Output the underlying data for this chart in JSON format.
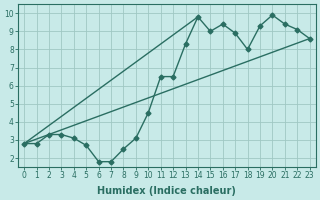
{
  "xlabel": "Humidex (Indice chaleur)",
  "ylabel": "",
  "bg_color": "#c8eae8",
  "grid_color": "#a0c8c4",
  "line_color": "#2a6e62",
  "xlim": [
    -0.5,
    23.5
  ],
  "ylim": [
    1.5,
    10.5
  ],
  "xticks": [
    0,
    1,
    2,
    3,
    4,
    5,
    6,
    7,
    8,
    9,
    10,
    11,
    12,
    13,
    14,
    15,
    16,
    17,
    18,
    19,
    20,
    21,
    22,
    23
  ],
  "yticks": [
    2,
    3,
    4,
    5,
    6,
    7,
    8,
    9,
    10
  ],
  "zigzag_x": [
    0,
    1,
    2,
    3,
    4,
    5,
    6,
    7,
    8,
    9,
    10,
    11,
    12,
    13,
    14,
    15,
    16,
    17,
    18,
    19,
    20,
    21,
    22,
    23
  ],
  "zigzag_y": [
    2.8,
    2.8,
    3.3,
    3.3,
    3.1,
    2.7,
    1.8,
    1.8,
    2.5,
    3.1,
    4.5,
    6.5,
    6.5,
    8.3,
    9.8,
    9.0,
    9.4,
    8.9,
    8.0,
    9.3,
    9.9,
    9.4,
    9.1,
    8.6
  ],
  "line1_x": [
    0,
    23
  ],
  "line1_y": [
    2.8,
    8.6
  ],
  "line2_x": [
    0,
    14
  ],
  "line2_y": [
    2.8,
    9.8
  ],
  "marker_size": 2.5,
  "linewidth": 1.0,
  "tick_fontsize": 5.5,
  "xlabel_fontsize": 7.0
}
